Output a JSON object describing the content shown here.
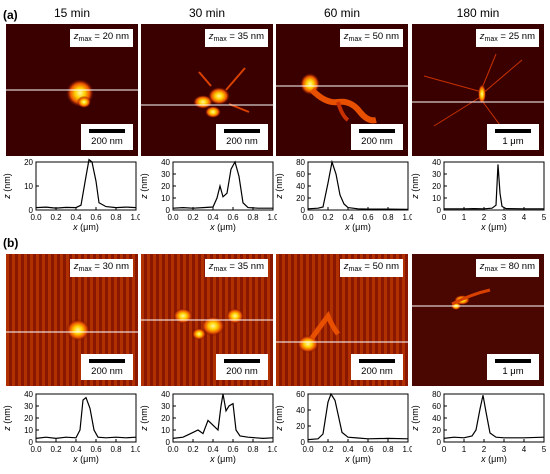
{
  "panel_labels": {
    "a": "(a)",
    "b": "(b)"
  },
  "columns": [
    {
      "title": "15 min"
    },
    {
      "title": "30 min"
    },
    {
      "title": "60 min"
    },
    {
      "title": "180 min"
    }
  ],
  "rows": [
    {
      "id": "a",
      "panels": [
        {
          "z_label": "z",
          "max_label": "max",
          "z_value": "= 20 nm",
          "scale": "200 nm",
          "profile": {
            "xlim": [
              0,
              1
            ],
            "xticks": [
              "0.0",
              "0.2",
              "0.4",
              "0.6",
              "0.8",
              "1.0"
            ],
            "ylim": [
              0,
              20
            ],
            "yticks": [
              "0",
              "10",
              "20"
            ],
            "points": [
              [
                0,
                1
              ],
              [
                0.1,
                1.2
              ],
              [
                0.2,
                0.8
              ],
              [
                0.3,
                1.1
              ],
              [
                0.4,
                1
              ],
              [
                0.45,
                2
              ],
              [
                0.5,
                14
              ],
              [
                0.53,
                21
              ],
              [
                0.56,
                20
              ],
              [
                0.6,
                12
              ],
              [
                0.63,
                3
              ],
              [
                0.7,
                1.4
              ],
              [
                0.8,
                1
              ],
              [
                0.9,
                1.2
              ],
              [
                1,
                1
              ]
            ]
          }
        },
        {
          "z_label": "z",
          "max_label": "max",
          "z_value": "= 35 nm",
          "scale": "200 nm",
          "profile": {
            "xlim": [
              0,
              1
            ],
            "xticks": [
              "0.0",
              "0.2",
              "0.4",
              "0.6",
              "0.8",
              "1.0"
            ],
            "ylim": [
              0,
              40
            ],
            "yticks": [
              "0",
              "10",
              "20",
              "30",
              "40"
            ],
            "points": [
              [
                0,
                1.5
              ],
              [
                0.1,
                2
              ],
              [
                0.2,
                1.5
              ],
              [
                0.3,
                2
              ],
              [
                0.4,
                2.5
              ],
              [
                0.44,
                10
              ],
              [
                0.47,
                20
              ],
              [
                0.5,
                11
              ],
              [
                0.54,
                14
              ],
              [
                0.58,
                34
              ],
              [
                0.62,
                40
              ],
              [
                0.66,
                28
              ],
              [
                0.7,
                6
              ],
              [
                0.75,
                2
              ],
              [
                0.85,
                1.5
              ],
              [
                1,
                1.5
              ]
            ]
          }
        },
        {
          "z_label": "z",
          "max_label": "max",
          "z_value": "= 50 nm",
          "scale": "200 nm",
          "profile": {
            "xlim": [
              0,
              1
            ],
            "xticks": [
              "0.0",
              "0.2",
              "0.4",
              "0.6",
              "0.8",
              "1.0"
            ],
            "ylim": [
              0,
              80
            ],
            "yticks": [
              "0",
              "20",
              "40",
              "60",
              "80"
            ],
            "points": [
              [
                0,
                2
              ],
              [
                0.1,
                3
              ],
              [
                0.15,
                5
              ],
              [
                0.2,
                45
              ],
              [
                0.24,
                80
              ],
              [
                0.28,
                60
              ],
              [
                0.32,
                25
              ],
              [
                0.36,
                10
              ],
              [
                0.4,
                4
              ],
              [
                0.5,
                2
              ],
              [
                0.6,
                1.5
              ],
              [
                0.8,
                1.5
              ],
              [
                1,
                1
              ]
            ]
          }
        },
        {
          "z_label": "z",
          "max_label": "max",
          "z_value": "= 25 nm",
          "scale": "1 μm",
          "profile": {
            "xlim": [
              0,
              5
            ],
            "xticks": [
              "0",
              "1",
              "2",
              "3",
              "4",
              "5"
            ],
            "ylim": [
              0,
              40
            ],
            "yticks": [
              "0",
              "10",
              "20",
              "30",
              "40"
            ],
            "points": [
              [
                0,
                1
              ],
              [
                1,
                1
              ],
              [
                1.5,
                1.2
              ],
              [
                2,
                1
              ],
              [
                2.4,
                1.5
              ],
              [
                2.6,
                4
              ],
              [
                2.7,
                38
              ],
              [
                2.8,
                14
              ],
              [
                2.9,
                3
              ],
              [
                3.1,
                1.2
              ],
              [
                4,
                1
              ],
              [
                5,
                1
              ]
            ]
          }
        }
      ]
    },
    {
      "id": "b",
      "panels": [
        {
          "z_label": "z",
          "max_label": "max",
          "z_value": "= 30 nm",
          "scale": "200 nm",
          "profile": {
            "xlim": [
              0,
              1
            ],
            "xticks": [
              "0.0",
              "0.2",
              "0.4",
              "0.6",
              "0.8",
              "1.0"
            ],
            "ylim": [
              0,
              40
            ],
            "yticks": [
              "0",
              "10",
              "20",
              "30",
              "40"
            ],
            "points": [
              [
                0,
                3
              ],
              [
                0.1,
                4
              ],
              [
                0.2,
                3
              ],
              [
                0.3,
                4
              ],
              [
                0.4,
                3.5
              ],
              [
                0.44,
                10
              ],
              [
                0.47,
                35
              ],
              [
                0.5,
                37
              ],
              [
                0.54,
                28
              ],
              [
                0.58,
                10
              ],
              [
                0.62,
                4
              ],
              [
                0.7,
                3.5
              ],
              [
                0.8,
                4
              ],
              [
                0.9,
                3.5
              ],
              [
                1,
                4
              ]
            ]
          }
        },
        {
          "z_label": "z",
          "max_label": "max",
          "z_value": "= 35 nm",
          "scale": "200 nm",
          "profile": {
            "xlim": [
              0,
              1
            ],
            "xticks": [
              "0.0",
              "0.2",
              "0.4",
              "0.6",
              "0.8",
              "1.0"
            ],
            "ylim": [
              0,
              40
            ],
            "yticks": [
              "0",
              "10",
              "20",
              "30",
              "40"
            ],
            "points": [
              [
                0,
                3
              ],
              [
                0.1,
                4
              ],
              [
                0.15,
                6
              ],
              [
                0.2,
                8
              ],
              [
                0.25,
                10
              ],
              [
                0.3,
                7
              ],
              [
                0.35,
                18
              ],
              [
                0.4,
                14
              ],
              [
                0.45,
                10
              ],
              [
                0.48,
                30
              ],
              [
                0.5,
                40
              ],
              [
                0.53,
                26
              ],
              [
                0.56,
                30
              ],
              [
                0.6,
                32
              ],
              [
                0.63,
                10
              ],
              [
                0.67,
                5
              ],
              [
                0.75,
                4
              ],
              [
                0.9,
                3
              ],
              [
                1,
                3.5
              ]
            ]
          }
        },
        {
          "z_label": "z",
          "max_label": "max",
          "z_value": "= 50 nm",
          "scale": "200 nm",
          "profile": {
            "xlim": [
              0,
              1
            ],
            "xticks": [
              "0.0",
              "0.2",
              "0.4",
              "0.6",
              "0.8",
              "1.0"
            ],
            "ylim": [
              0,
              60
            ],
            "yticks": [
              "0",
              "20",
              "40",
              "60"
            ],
            "points": [
              [
                0,
                3
              ],
              [
                0.1,
                4
              ],
              [
                0.15,
                10
              ],
              [
                0.2,
                50
              ],
              [
                0.23,
                60
              ],
              [
                0.27,
                52
              ],
              [
                0.3,
                35
              ],
              [
                0.34,
                12
              ],
              [
                0.4,
                6
              ],
              [
                0.5,
                5
              ],
              [
                0.6,
                4
              ],
              [
                0.8,
                4.5
              ],
              [
                1,
                4
              ]
            ]
          }
        },
        {
          "z_label": "z",
          "max_label": "max",
          "z_value": "= 80 nm",
          "scale": "1 μm",
          "profile": {
            "xlim": [
              0,
              5
            ],
            "xticks": [
              "0",
              "1",
              "2",
              "3",
              "4",
              "5"
            ],
            "ylim": [
              0,
              80
            ],
            "yticks": [
              "0",
              "20",
              "40",
              "60",
              "80"
            ],
            "points": [
              [
                0,
                6
              ],
              [
                0.5,
                8
              ],
              [
                1,
                7
              ],
              [
                1.4,
                10
              ],
              [
                1.6,
                20
              ],
              [
                1.8,
                55
              ],
              [
                1.95,
                78
              ],
              [
                2.1,
                50
              ],
              [
                2.3,
                15
              ],
              [
                2.6,
                8
              ],
              [
                3,
                7
              ],
              [
                4,
                7
              ],
              [
                5,
                8
              ]
            ]
          }
        }
      ]
    }
  ],
  "axis": {
    "xlabel_var": "x",
    "xlabel_unit": " (μm)",
    "ylabel_var": "z",
    "ylabel_unit": " (nm)"
  },
  "colors": {
    "bg_dark": "#3a0000",
    "hot": "#ffe000",
    "mid": "#e84a00",
    "line": "#ffffff"
  }
}
